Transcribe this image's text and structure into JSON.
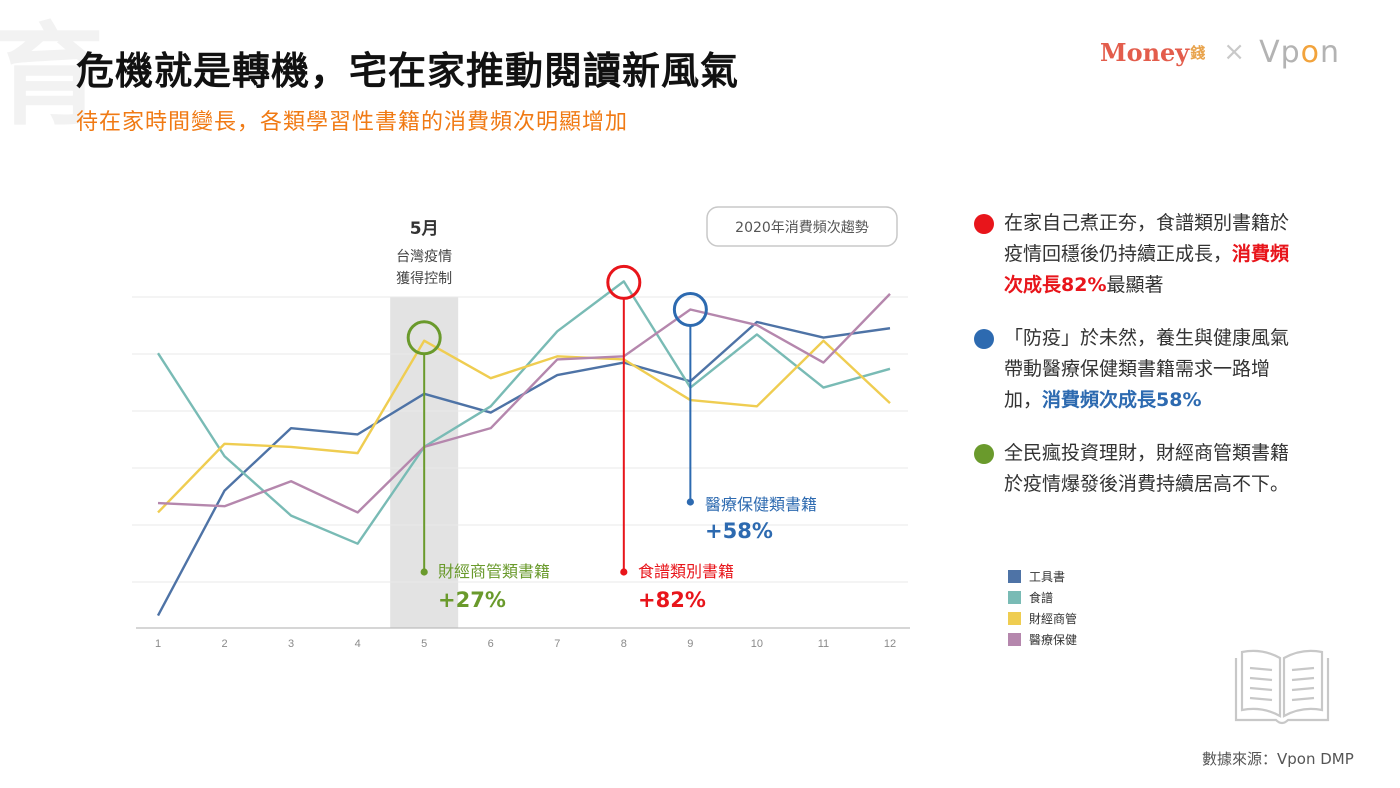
{
  "watermark": "育",
  "title": "危機就是轉機，宅在家推動閱讀新風氣",
  "subtitle": "待在家時間變長，各類學習性書籍的消費頻次明顯增加",
  "brand": {
    "money": "Money",
    "money_suffix": "錢",
    "times": "×",
    "vpon_a": "Vp",
    "vpon_o": "o",
    "vpon_n": "n"
  },
  "chart_data": {
    "type": "line",
    "title": "2020年消費頻次趨勢",
    "x": [
      1,
      2,
      3,
      4,
      5,
      6,
      7,
      8,
      9,
      10,
      11,
      12
    ],
    "ylim": [
      0,
      100
    ],
    "grid": true,
    "y_axis_labels": "none",
    "series": [
      {
        "name": "工具書",
        "color": "#4e73a6",
        "values": [
          4,
          44,
          64,
          62,
          75,
          69,
          81,
          85,
          79,
          98,
          93,
          96
        ]
      },
      {
        "name": "食譜",
        "color": "#79bbb5",
        "values": [
          88,
          55,
          36,
          27,
          58,
          71,
          95,
          111,
          77,
          94,
          77,
          83
        ]
      },
      {
        "name": "財經商管",
        "color": "#efcd51",
        "values": [
          37,
          59,
          58,
          56,
          92,
          80,
          87,
          86,
          73,
          71,
          92,
          72
        ]
      },
      {
        "name": "醫療保健",
        "color": "#b587ad",
        "values": [
          40,
          39,
          47,
          37,
          58,
          64,
          86,
          87,
          102,
          97,
          85,
          107
        ]
      }
    ],
    "highlight_band": {
      "x": 5,
      "label_month": "5月",
      "label_line1": "台灣疫情",
      "label_line2": "獲得控制"
    },
    "annotations": [
      {
        "label": "財經商管類書籍",
        "value": "+27%",
        "color": "#6a9a2c"
      },
      {
        "label": "食譜類別書籍",
        "value": "+82%",
        "color": "#e8151b"
      },
      {
        "label": "醫療保健類書籍",
        "value": "+58%",
        "color": "#2d6ab0"
      }
    ]
  },
  "notes": [
    {
      "color": "#e8151b",
      "text": "在家自己煮正夯，食譜類別書籍於疫情回穩後仍持續正成長，",
      "highlight": "消費頻次成長82%",
      "after": "最顯著",
      "highlight_color": "#e8151b"
    },
    {
      "color": "#2d6ab0",
      "text": "「防疫」於未然，養生與健康風氣帶動醫療保健類書籍需求一路增加，",
      "highlight": "消費頻次成長58%",
      "after": "",
      "highlight_color": "#2d6ab0"
    },
    {
      "color": "#6a9a2c",
      "text": "全民瘋投資理財，財經商管類書籍於疫情爆發後消費持續居高不下。",
      "highlight": "",
      "after": "",
      "highlight_color": "#6a9a2c"
    }
  ],
  "legend": [
    "工具書",
    "食譜",
    "財經商管",
    "醫療保健"
  ],
  "source": "數據來源：Vpon DMP",
  "icons": {
    "book": "open-book-icon"
  }
}
